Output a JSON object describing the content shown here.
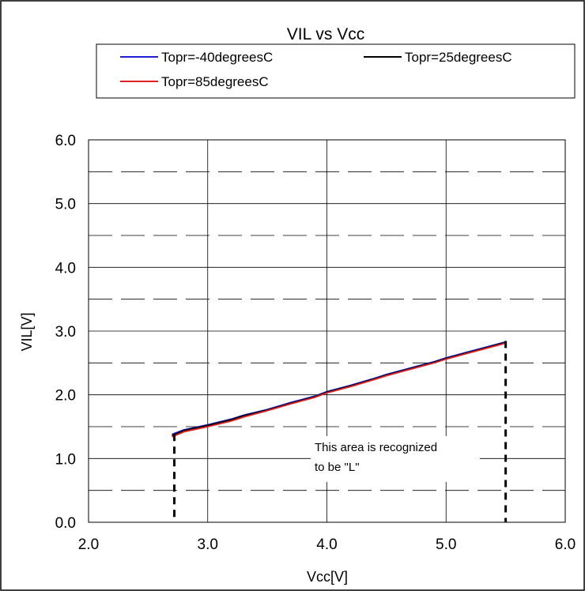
{
  "chart_data": {
    "type": "line",
    "title": "VIL vs Vcc",
    "xlabel": "Vcc[V]",
    "ylabel": "VIL[V]",
    "xlim": [
      2.0,
      6.0
    ],
    "ylim": [
      0.0,
      6.0
    ],
    "xticks": [
      "2.0",
      "3.0",
      "4.0",
      "5.0",
      "6.0"
    ],
    "yticks": [
      "0.0",
      "1.0",
      "2.0",
      "3.0",
      "4.0",
      "5.0",
      "6.0"
    ],
    "grid": true,
    "legend_position": "top",
    "series": [
      {
        "name": "Topr=-40degreesC",
        "color": "#1f1fd0",
        "x": [
          2.7,
          2.8,
          3.0,
          3.2,
          3.3,
          3.5,
          3.7,
          3.9,
          4.0,
          4.2,
          4.4,
          4.5,
          4.7,
          4.9,
          5.0,
          5.2,
          5.3,
          5.5
        ],
        "y": [
          1.38,
          1.45,
          1.53,
          1.62,
          1.68,
          1.77,
          1.88,
          1.98,
          2.05,
          2.15,
          2.26,
          2.32,
          2.42,
          2.52,
          2.58,
          2.68,
          2.73,
          2.83
        ]
      },
      {
        "name": "Topr=25degreesC",
        "color": "#000000",
        "x": [
          2.7,
          2.8,
          3.0,
          3.2,
          3.3,
          3.5,
          3.7,
          3.9,
          4.0,
          4.2,
          4.4,
          4.5,
          4.7,
          4.9,
          5.0,
          5.2,
          5.3,
          5.5
        ],
        "y": [
          1.36,
          1.44,
          1.52,
          1.61,
          1.67,
          1.76,
          1.87,
          1.97,
          2.04,
          2.14,
          2.25,
          2.31,
          2.41,
          2.51,
          2.57,
          2.67,
          2.72,
          2.82
        ]
      },
      {
        "name": "Topr=85degreesC",
        "color": "#e02020",
        "x": [
          2.7,
          2.8,
          3.0,
          3.2,
          3.3,
          3.5,
          3.7,
          3.9,
          4.0,
          4.2,
          4.4,
          4.5,
          4.7,
          4.9,
          5.0,
          5.2,
          5.3,
          5.5
        ],
        "y": [
          1.34,
          1.42,
          1.5,
          1.59,
          1.65,
          1.75,
          1.86,
          1.96,
          2.03,
          2.13,
          2.24,
          2.3,
          2.4,
          2.5,
          2.56,
          2.66,
          2.71,
          2.81
        ]
      }
    ],
    "annotations": {
      "region_label_line1": "This area is recognized",
      "region_label_line2": "to be \"L\"",
      "boundary_x": [
        2.7,
        5.5
      ]
    }
  }
}
